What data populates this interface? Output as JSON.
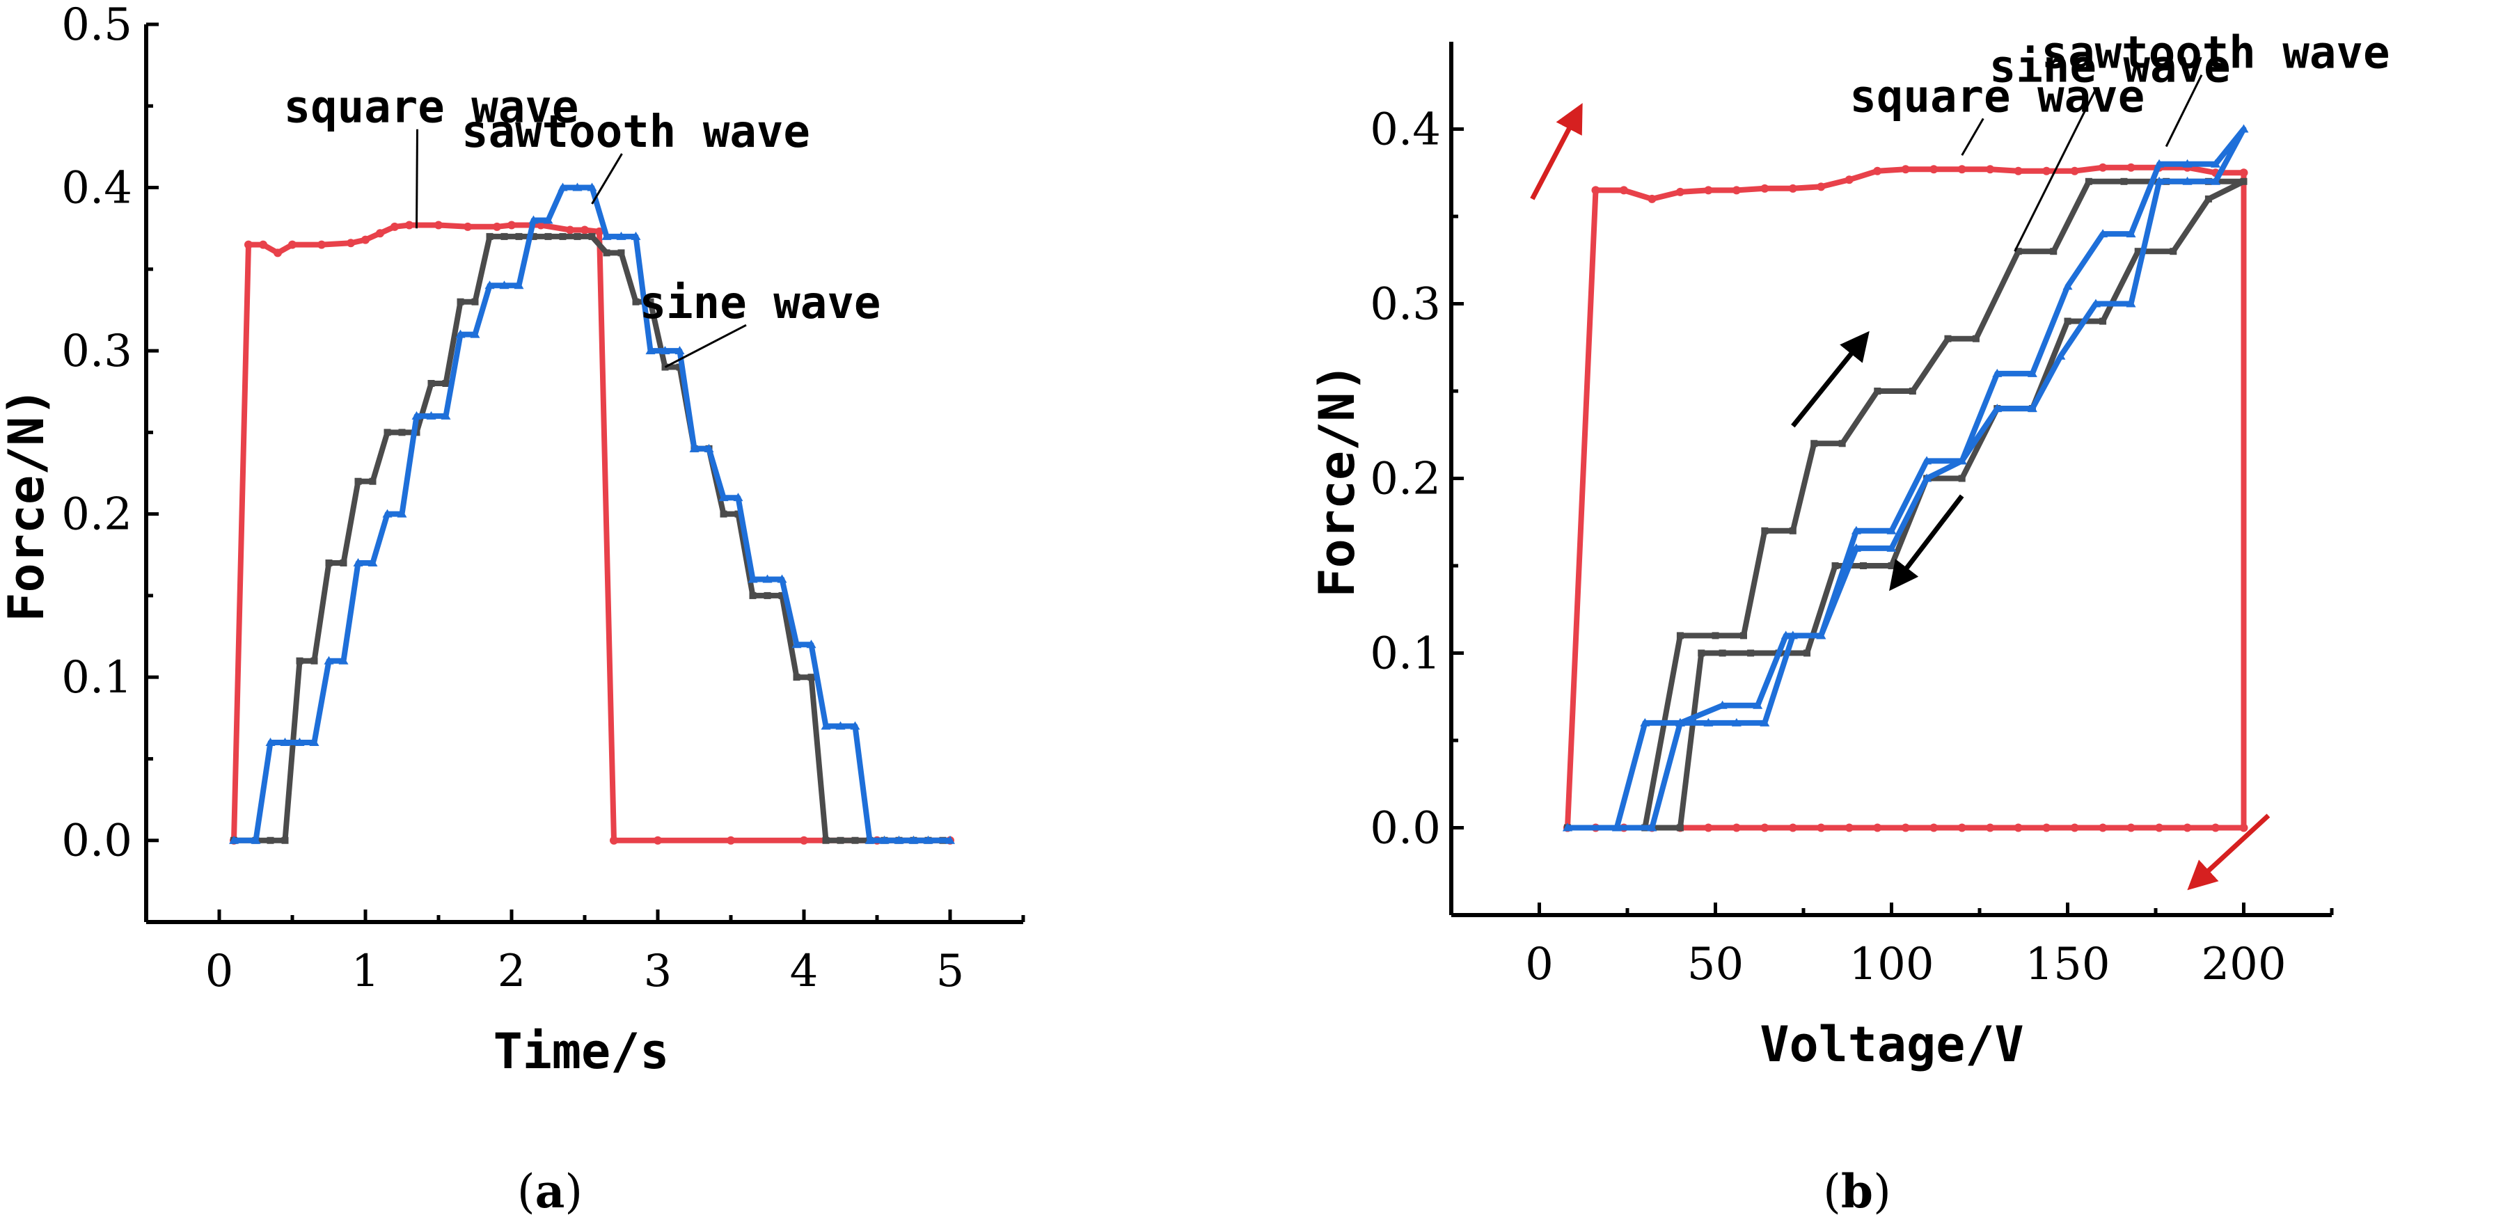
{
  "colors": {
    "square": "#E8414A",
    "sine": "#4B4B4B",
    "sawtooth": "#1E6FD9",
    "black": "#000000"
  },
  "chart_data": [
    {
      "panel": "(a)",
      "panel_open": "(",
      "panel_letter": "a",
      "panel_close": ")",
      "type": "line",
      "xlabel": "Time/s",
      "ylabel": "Force/N)",
      "xlim": [
        -0.5,
        5.5
      ],
      "ylim": [
        -0.05,
        0.5
      ],
      "xticks": [
        0,
        1,
        2,
        3,
        4,
        5
      ],
      "xtick_labels": [
        "0",
        "1",
        "2",
        "3",
        "4",
        "5"
      ],
      "yticks": [
        0.0,
        0.1,
        0.2,
        0.3,
        0.4,
        0.5
      ],
      "ytick_labels": [
        "0.0",
        "0.1",
        "0.2",
        "0.3",
        "0.4",
        "0.5"
      ],
      "series": [
        {
          "name": "square wave",
          "color_key": "square",
          "x": [
            0.1,
            0.2,
            0.3,
            0.4,
            0.5,
            0.7,
            0.9,
            1.0,
            1.1,
            1.2,
            1.3,
            1.5,
            1.7,
            1.9,
            2.0,
            2.2,
            2.4,
            2.5,
            2.6,
            2.7,
            3.0,
            3.5,
            4.0,
            4.5,
            5.0
          ],
          "y": [
            0.0,
            0.365,
            0.365,
            0.36,
            0.365,
            0.365,
            0.366,
            0.368,
            0.372,
            0.376,
            0.377,
            0.377,
            0.376,
            0.376,
            0.377,
            0.377,
            0.374,
            0.374,
            0.373,
            0.0,
            0.0,
            0.0,
            0.0,
            0.0,
            0.0
          ]
        },
        {
          "name": "sine wave",
          "color_key": "sine",
          "x": [
            0.1,
            0.25,
            0.35,
            0.45,
            0.55,
            0.65,
            0.75,
            0.85,
            0.95,
            1.05,
            1.15,
            1.25,
            1.35,
            1.45,
            1.55,
            1.65,
            1.75,
            1.85,
            1.95,
            2.05,
            2.15,
            2.25,
            2.35,
            2.45,
            2.55,
            2.65,
            2.75,
            2.85,
            2.95,
            3.05,
            3.15,
            3.25,
            3.35,
            3.45,
            3.55,
            3.65,
            3.75,
            3.85,
            3.95,
            4.05,
            4.15,
            4.25,
            4.35,
            4.45,
            4.55,
            4.65,
            4.75,
            4.85,
            4.95
          ],
          "y": [
            0.0,
            0.0,
            0.0,
            0.0,
            0.11,
            0.11,
            0.17,
            0.17,
            0.22,
            0.22,
            0.25,
            0.25,
            0.25,
            0.28,
            0.28,
            0.33,
            0.33,
            0.37,
            0.37,
            0.37,
            0.37,
            0.37,
            0.37,
            0.37,
            0.37,
            0.36,
            0.36,
            0.33,
            0.33,
            0.29,
            0.29,
            0.24,
            0.24,
            0.2,
            0.2,
            0.15,
            0.15,
            0.15,
            0.1,
            0.1,
            0.0,
            0.0,
            0.0,
            0.0,
            0.0,
            0.0,
            0.0,
            0.0,
            0.0
          ]
        },
        {
          "name": "sawtooth wave",
          "color_key": "sawtooth",
          "x": [
            0.1,
            0.25,
            0.35,
            0.45,
            0.55,
            0.65,
            0.75,
            0.85,
            0.95,
            1.05,
            1.15,
            1.25,
            1.35,
            1.45,
            1.55,
            1.65,
            1.75,
            1.85,
            1.95,
            2.05,
            2.15,
            2.25,
            2.35,
            2.45,
            2.55,
            2.65,
            2.75,
            2.85,
            2.95,
            3.05,
            3.15,
            3.25,
            3.35,
            3.45,
            3.55,
            3.65,
            3.75,
            3.85,
            3.95,
            4.05,
            4.15,
            4.25,
            4.35,
            4.45,
            4.55,
            4.65,
            4.75,
            4.85,
            5.0
          ],
          "y": [
            0.0,
            0.0,
            0.06,
            0.06,
            0.06,
            0.06,
            0.11,
            0.11,
            0.17,
            0.17,
            0.2,
            0.2,
            0.26,
            0.26,
            0.26,
            0.31,
            0.31,
            0.34,
            0.34,
            0.34,
            0.38,
            0.38,
            0.4,
            0.4,
            0.4,
            0.37,
            0.37,
            0.37,
            0.3,
            0.3,
            0.3,
            0.24,
            0.24,
            0.21,
            0.21,
            0.16,
            0.16,
            0.16,
            0.12,
            0.12,
            0.07,
            0.07,
            0.07,
            0.0,
            0.0,
            0.0,
            0.0,
            0.0,
            0.0
          ]
        }
      ],
      "annotations": [
        {
          "text": "square wave",
          "leader_to": [
            1.35,
            0.375
          ],
          "text_at": [
            1.45,
            0.44
          ]
        },
        {
          "text": "sawtooth wave",
          "leader_to": [
            2.55,
            0.39
          ],
          "text_at": [
            2.85,
            0.425
          ]
        },
        {
          "text": "sine wave",
          "leader_to": [
            3.05,
            0.29
          ],
          "text_at": [
            3.7,
            0.32
          ]
        }
      ]
    },
    {
      "panel": "(b)",
      "panel_open": "(",
      "panel_letter": "b",
      "panel_close": ")",
      "type": "line",
      "xlabel": "Voltage/V",
      "ylabel": "Force/N)",
      "xlim": [
        -25,
        225
      ],
      "ylim": [
        -0.05,
        0.45
      ],
      "xticks": [
        0,
        50,
        100,
        150,
        200
      ],
      "xtick_labels": [
        "0",
        "50",
        "100",
        "150",
        "200"
      ],
      "yticks": [
        0.0,
        0.1,
        0.2,
        0.3,
        0.4
      ],
      "ytick_labels": [
        "0.0",
        "0.1",
        "0.2",
        "0.3",
        "0.4"
      ],
      "series": [
        {
          "name": "square wave",
          "color_key": "square",
          "x": [
            8,
            16,
            24,
            32,
            40,
            48,
            56,
            64,
            72,
            80,
            88,
            96,
            104,
            112,
            120,
            128,
            136,
            144,
            152,
            160,
            168,
            176,
            184,
            192,
            200,
            200,
            192,
            184,
            176,
            168,
            160,
            152,
            144,
            136,
            128,
            120,
            112,
            104,
            96,
            88,
            80,
            72,
            64,
            56,
            48,
            40,
            32,
            24,
            16,
            8
          ],
          "y": [
            0.0,
            0.365,
            0.365,
            0.36,
            0.364,
            0.365,
            0.365,
            0.366,
            0.366,
            0.367,
            0.371,
            0.376,
            0.377,
            0.377,
            0.377,
            0.377,
            0.376,
            0.376,
            0.376,
            0.378,
            0.378,
            0.378,
            0.378,
            0.375,
            0.375,
            0.0,
            0.0,
            0.0,
            0.0,
            0.0,
            0.0,
            0.0,
            0.0,
            0.0,
            0.0,
            0.0,
            0.0,
            0.0,
            0.0,
            0.0,
            0.0,
            0.0,
            0.0,
            0.0,
            0.0,
            0.0,
            0.0,
            0.0,
            0.0,
            0.0
          ]
        },
        {
          "name": "sine wave",
          "color_key": "sine",
          "x": [
            8,
            30,
            40,
            50,
            58,
            64,
            72,
            78,
            86,
            96,
            106,
            116,
            124,
            136,
            146,
            156,
            166,
            178,
            190,
            200,
            190,
            180,
            170,
            160,
            150,
            140,
            130,
            120,
            110,
            100,
            92,
            84,
            76,
            68,
            60,
            52,
            46,
            40,
            30,
            8
          ],
          "y": [
            0.0,
            0.0,
            0.11,
            0.11,
            0.11,
            0.17,
            0.17,
            0.22,
            0.22,
            0.25,
            0.25,
            0.28,
            0.28,
            0.33,
            0.33,
            0.37,
            0.37,
            0.37,
            0.37,
            0.37,
            0.36,
            0.33,
            0.33,
            0.29,
            0.29,
            0.24,
            0.24,
            0.2,
            0.2,
            0.15,
            0.15,
            0.15,
            0.1,
            0.1,
            0.1,
            0.1,
            0.1,
            0.0,
            0.0,
            0.0
          ]
        },
        {
          "name": "sawtooth wave",
          "color_key": "sawtooth",
          "x": [
            8,
            22,
            30,
            40,
            52,
            62,
            70,
            80,
            90,
            100,
            110,
            120,
            130,
            140,
            150,
            160,
            168,
            176,
            184,
            192,
            200,
            192,
            184,
            176,
            168,
            158,
            148,
            140,
            130,
            120,
            110,
            100,
            90,
            80,
            72,
            64,
            56,
            48,
            40,
            32,
            8
          ],
          "y": [
            0.0,
            0.0,
            0.06,
            0.06,
            0.07,
            0.07,
            0.11,
            0.11,
            0.16,
            0.16,
            0.2,
            0.21,
            0.26,
            0.26,
            0.31,
            0.34,
            0.34,
            0.38,
            0.38,
            0.38,
            0.4,
            0.37,
            0.37,
            0.37,
            0.3,
            0.3,
            0.27,
            0.24,
            0.24,
            0.21,
            0.21,
            0.17,
            0.17,
            0.11,
            0.11,
            0.06,
            0.06,
            0.06,
            0.06,
            0.0,
            0.0
          ]
        }
      ],
      "annotations": [
        {
          "text": "square wave",
          "leader_to": [
            120,
            0.385
          ],
          "text_at": [
            130,
            0.41
          ]
        },
        {
          "text": "sine wave",
          "leader_to": [
            135,
            0.33
          ],
          "text_at": [
            162,
            0.427
          ]
        },
        {
          "text": "sawtooth wave",
          "leader_to": [
            178,
            0.39
          ],
          "text_at": [
            192,
            0.435
          ]
        }
      ],
      "arrows": [
        {
          "color_key": "square",
          "from": [
            -2,
            0.36
          ],
          "to": [
            11,
            0.41
          ]
        },
        {
          "color_key": "sine",
          "from": [
            72,
            0.23
          ],
          "to": [
            92,
            0.28
          ]
        },
        {
          "color_key": "sine",
          "from": [
            120,
            0.19
          ],
          "to": [
            101,
            0.14
          ]
        },
        {
          "color_key": "square",
          "from": [
            207,
            0.007
          ],
          "to": [
            186,
            -0.032
          ]
        }
      ]
    }
  ]
}
